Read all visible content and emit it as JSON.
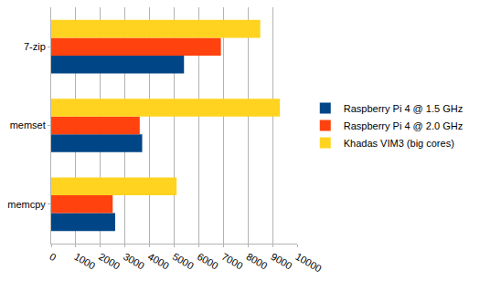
{
  "chart_data": {
    "type": "bar",
    "orientation": "horizontal",
    "categories": [
      "memcpy",
      "memset",
      "7-zip"
    ],
    "series": [
      {
        "name": "Raspberry Pi 4 @ 1.5 GHz",
        "color": "#004586",
        "values": [
          2600,
          3700,
          5400
        ]
      },
      {
        "name": "Raspberry Pi 4 @ 2.0 GHz",
        "color": "#ff420e",
        "values": [
          2500,
          3600,
          6900
        ]
      },
      {
        "name": "Khadas VIM3 (big cores)",
        "color": "#ffd320",
        "values": [
          5100,
          9300,
          8500
        ]
      }
    ],
    "xlim": [
      0,
      10000
    ],
    "xticks": [
      0,
      1000,
      2000,
      3000,
      4000,
      5000,
      6000,
      7000,
      8000,
      9000,
      10000
    ],
    "grid": true,
    "legend": "right"
  }
}
